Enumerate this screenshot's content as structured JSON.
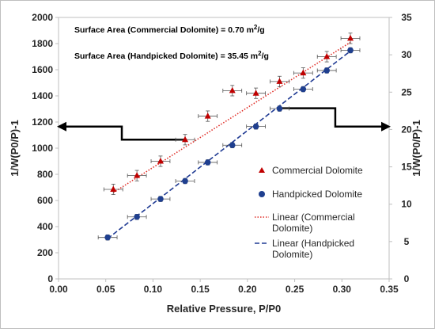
{
  "chart_data": {
    "type": "scatter",
    "x_axis": {
      "label": "Relative Pressure, P/P0",
      "range": [
        0,
        0.35
      ],
      "ticks": [
        "0.00",
        "0.05",
        "0.10",
        "0.15",
        "0.20",
        "0.25",
        "0.30",
        "0.35"
      ]
    },
    "y_left": {
      "label": "1/W(P0/P)-1",
      "range": [
        0,
        2000
      ],
      "ticks": [
        "0",
        "200",
        "400",
        "600",
        "800",
        "1000",
        "1200",
        "1400",
        "1600",
        "1800",
        "2000"
      ]
    },
    "y_right": {
      "label": "1/W(P0/P)-1",
      "range": [
        0,
        35
      ],
      "ticks": [
        "0",
        "5",
        "10",
        "15",
        "20",
        "25",
        "30",
        "35"
      ]
    },
    "annotations": [
      "Surface Area (Commercial Dolomite) = 0.70 m",
      "Surface Area (Handpicked Dolomite) = 35.45 m"
    ],
    "annotation_unit": "2",
    "annotation_unit_suffix": "/g",
    "legend": [
      "Commercial Dolomite",
      "Handpicked Dolomite",
      "Linear (Commercial",
      "Dolomite)",
      "Linear (Handpicked",
      "Dolomite)"
    ],
    "series": [
      {
        "name": "Commercial Dolomite",
        "axis": "left",
        "color": "#c00000",
        "marker": "triangle",
        "x": [
          0.058,
          0.083,
          0.108,
          0.134,
          0.158,
          0.184,
          0.209,
          0.234,
          0.259,
          0.284,
          0.309
        ],
        "y": [
          685,
          790,
          900,
          1065,
          1245,
          1440,
          1420,
          1510,
          1575,
          1700,
          1840
        ],
        "x_error": 0.01,
        "y_error": 40
      },
      {
        "name": "Handpicked Dolomite",
        "axis": "right",
        "color": "#1f3f8f",
        "marker": "circle",
        "x": [
          0.052,
          0.083,
          0.108,
          0.134,
          0.158,
          0.184,
          0.209,
          0.234,
          0.259,
          0.284,
          0.309
        ],
        "y": [
          5.55,
          8.3,
          10.7,
          13.1,
          15.6,
          17.9,
          20.4,
          22.8,
          25.4,
          27.9,
          30.6
        ],
        "x_error": 0.01,
        "y_error": 0.35
      },
      {
        "name": "Linear (Commercial Dolomite)",
        "axis": "left",
        "color": "#e0302a",
        "style": "dotted",
        "x": [
          0.058,
          0.309
        ],
        "y": [
          660,
          1810
        ]
      },
      {
        "name": "Linear (Handpicked Dolomite)",
        "axis": "right",
        "color": "#1f3a93",
        "style": "dashed",
        "x": [
          0.052,
          0.309
        ],
        "y": [
          5.4,
          30.5
        ]
      }
    ],
    "pointers": [
      {
        "direction": "left",
        "x": [
          0.0,
          0.067
        ],
        "y_left_upper": 1165,
        "y_left_lower": 1065,
        "x_knee": 0.067,
        "x_end": 0.134
      },
      {
        "direction": "right",
        "x": [
          0.233,
          0.35
        ],
        "y_left_upper": 1305,
        "y_left_lower": 1165,
        "x_knee": 0.293
      }
    ]
  }
}
